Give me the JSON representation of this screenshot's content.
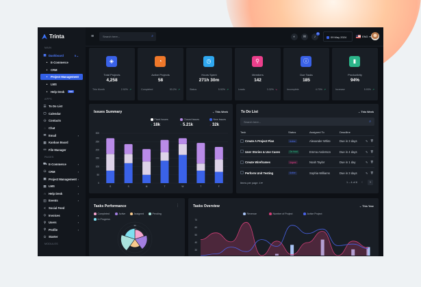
{
  "app": {
    "name": "Trinta"
  },
  "sidebar": {
    "sections": [
      {
        "label": "MAIN",
        "items": [
          {
            "label": "Dashboard",
            "icon": "grid-icon",
            "expanded": true,
            "accent": true,
            "badge_count": "5"
          },
          {
            "label": "E-Commerce",
            "sub": true
          },
          {
            "label": "CRM",
            "sub": true
          },
          {
            "label": "Project Management",
            "sub": true,
            "active": true
          },
          {
            "label": "LMS",
            "sub": true
          },
          {
            "label": "Help Desk",
            "sub": true,
            "badge": "Hot"
          }
        ]
      },
      {
        "label": "APPS",
        "items": [
          {
            "label": "To Do List",
            "icon": "checklist-icon"
          },
          {
            "label": "Calendar",
            "icon": "calendar-icon"
          },
          {
            "label": "Contacts",
            "icon": "contacts-icon"
          },
          {
            "label": "Chat",
            "icon": "chat-icon"
          },
          {
            "label": "Email",
            "icon": "email-icon",
            "chevron": true
          },
          {
            "label": "Kanban Board",
            "icon": "kanban-icon"
          },
          {
            "label": "File Manager",
            "icon": "folder-icon"
          }
        ]
      },
      {
        "label": "PAGES",
        "items": [
          {
            "label": "E-Commerce",
            "icon": "cart-icon",
            "chevron": true
          },
          {
            "label": "CRM",
            "icon": "users-icon",
            "chevron": true
          },
          {
            "label": "Project Management",
            "icon": "briefcase-icon",
            "chevron": true
          },
          {
            "label": "LMS",
            "icon": "book-icon",
            "chevron": true
          },
          {
            "label": "Help Desk",
            "icon": "headset-icon",
            "chevron": true
          },
          {
            "label": "Events",
            "icon": "events-icon",
            "chevron": true
          },
          {
            "label": "Social Feed",
            "icon": "share-icon"
          },
          {
            "label": "Invoices",
            "icon": "tag-icon",
            "chevron": true
          },
          {
            "label": "Users",
            "icon": "user-icon",
            "chevron": true
          },
          {
            "label": "Profile",
            "icon": "profile-icon",
            "chevron": true
          },
          {
            "label": "Starter",
            "icon": "star-icon"
          }
        ]
      },
      {
        "label": "MODULES",
        "items": []
      }
    ]
  },
  "header": {
    "search_placeholder": "Search here...",
    "notifications": "1",
    "date": "09 May 2024",
    "language": "ENG"
  },
  "stats": [
    {
      "label": "Total Projects",
      "value": "4,258",
      "foot": "This Month",
      "pct": "2.92%",
      "trend": "up",
      "color": "#3a62e8",
      "icon": "layers-icon"
    },
    {
      "label": "Active Projects",
      "value": "58",
      "foot": "Completed",
      "pct": "53.2%",
      "trend": "up",
      "color": "#f0782a",
      "icon": "pie-icon"
    },
    {
      "label": "Hours Spent",
      "value": "271h 30m",
      "foot": "Status",
      "pct": "5.92%",
      "trend": "up",
      "color": "#2fa8f0",
      "icon": "clock-icon"
    },
    {
      "label": "Members",
      "value": "142",
      "foot": "Leads",
      "pct": "3.32%",
      "trend": "down",
      "color": "#ec3f8c",
      "icon": "user-icon"
    },
    {
      "label": "Due Tasks",
      "value": "185",
      "foot": "Incomplete",
      "pct": "4.70%",
      "trend": "up",
      "color": "#3a62e8",
      "icon": "alert-icon"
    },
    {
      "label": "Productivity",
      "value": "94%",
      "foot": "Increase",
      "pct": "5.93%",
      "trend": "up",
      "color": "#2cb58a",
      "icon": "bar-chart-icon"
    }
  ],
  "colors": {
    "up": "#2cc48a",
    "down": "#ec3f8c"
  },
  "issues": {
    "title": "Issues Summary",
    "period": "This Week",
    "legend": [
      {
        "label": "Fixed Issues",
        "color": "#ffffff",
        "value": "18k",
        "trend": "up"
      },
      {
        "label": "Closed Issues",
        "color": "#b98be8",
        "value": "5.21k",
        "trend": "up"
      },
      {
        "label": "New Issues",
        "color": "#3a62e8",
        "value": "32k",
        "trend": "down"
      }
    ]
  },
  "chart_data": [
    {
      "type": "bar",
      "stacked": true,
      "categories": [
        "S",
        "S",
        "M",
        "T",
        "W",
        "T",
        "F"
      ],
      "ylim": [
        0,
        300
      ],
      "yticks": [
        0,
        50,
        100,
        150,
        200,
        250,
        300
      ],
      "grid": true,
      "series": [
        {
          "name": "New Issues",
          "color": "#3a62e8",
          "values": [
            75,
            120,
            50,
            135,
            170,
            75,
            68
          ]
        },
        {
          "name": "Fixed Issues",
          "color": "#ddd3e8",
          "values": [
            100,
            55,
            80,
            50,
            65,
            43,
            74
          ]
        },
        {
          "name": "Closed Issues",
          "color": "#b98be8",
          "values": [
            95,
            60,
            75,
            75,
            35,
            124,
            76
          ]
        }
      ]
    },
    {
      "type": "polar-area",
      "title": "Tasks Performance",
      "rticks": [
        10,
        20,
        30
      ],
      "categories": [
        "Completed",
        "Active",
        "Assigned",
        "Pending",
        "In Progress"
      ],
      "colors": [
        "#f6a6cf",
        "#a27ee0",
        "#f7c98c",
        "#a9e2dc",
        "#7fe0f0"
      ],
      "values": [
        22,
        30,
        18,
        35,
        25
      ]
    },
    {
      "type": "area",
      "title": "Tasks Overview",
      "period": "This Year",
      "yticks": [
        30,
        40,
        50,
        60,
        70
      ],
      "legend": "top",
      "series": [
        {
          "name": "Revenue",
          "type": "bar",
          "color": "#a9c4f5",
          "values": [
            15,
            18,
            20,
            22,
            18,
            25,
            37,
            20,
            44,
            22,
            31,
            34
          ]
        },
        {
          "name": "Number of Project",
          "type": "area",
          "color": "#d23f78",
          "values": [
            44,
            53,
            41,
            67,
            22,
            42,
            24,
            40,
            55,
            22,
            42,
            33
          ]
        },
        {
          "name": "Active Project",
          "type": "line",
          "color": "#4a63e8",
          "values": [
            22,
            25,
            34,
            28,
            44,
            35,
            63,
            52,
            58,
            36,
            38,
            32
          ]
        }
      ]
    }
  ],
  "todo": {
    "title": "To Do List",
    "period": "This Week",
    "search_placeholder": "Search here...",
    "columns": [
      "Task",
      "Status",
      "Assigned To",
      "Deadline"
    ],
    "rows": [
      {
        "task": "Create A Project Plan",
        "status": "Active",
        "status_color": "#4f6ff0",
        "assigned": "Alexander White",
        "deadline": "Due in 3 days"
      },
      {
        "task": "User Stories & Use Cases",
        "status": "On Hold",
        "status_color": "#2cc48a",
        "assigned": "Emma Anderson",
        "deadline": "Due in 4 days"
      },
      {
        "task": "Create Wireframes",
        "status": "Urgent",
        "status_color": "#ec3f8c",
        "assigned": "Noah Taylor",
        "deadline": "Due in 1 day"
      },
      {
        "task": "Perform Unit Testing",
        "status": "Active",
        "status_color": "#4f6ff0",
        "assigned": "Sophia Williams",
        "deadline": "Due in 3 days"
      }
    ],
    "items_per_page_label": "Items per page:",
    "items_per_page": "4",
    "range": "1 – 4 of 8"
  },
  "performance": {
    "title": "Tasks Performance"
  },
  "overview": {
    "title": "Tasks Overview",
    "period": "This Year"
  }
}
